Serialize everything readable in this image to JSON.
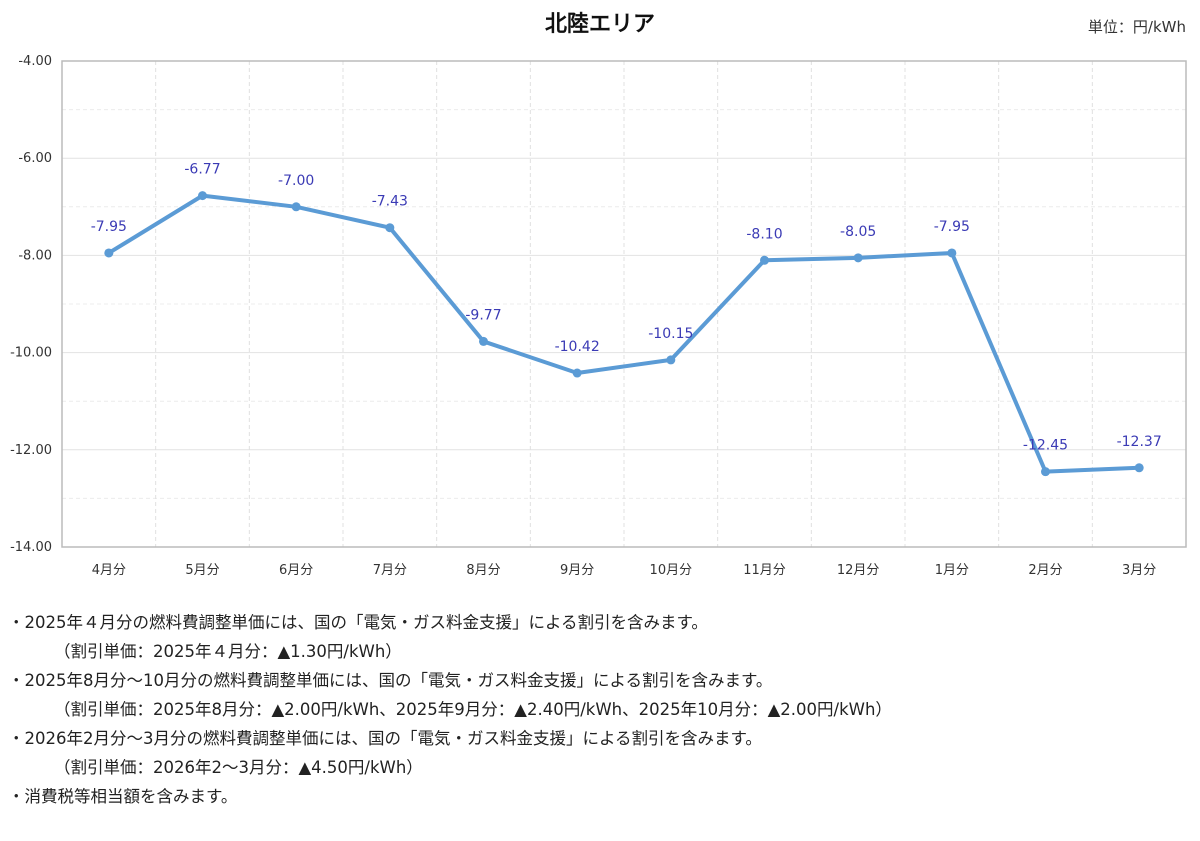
{
  "chart_data": {
    "type": "line",
    "title": "北陸エリア",
    "unit": "単位：円/kWh",
    "categories": [
      "4月分",
      "5月分",
      "6月分",
      "7月分",
      "8月分",
      "9月分",
      "10月分",
      "11月分",
      "12月分",
      "1月分",
      "2月分",
      "3月分"
    ],
    "series": [
      {
        "values": [
          -7.95,
          -6.77,
          -7.0,
          -7.43,
          -9.77,
          -10.42,
          -10.15,
          -8.1,
          -8.05,
          -7.95,
          -12.45,
          -12.37
        ],
        "labels": [
          "-7.95",
          "-6.77",
          "-7.00",
          "-7.43",
          "-9.77",
          "-10.42",
          "-10.15",
          "-8.10",
          "-8.05",
          "-7.95",
          "-12.45",
          "-12.37"
        ],
        "color": "#5b9bd5"
      }
    ],
    "ylim": [
      -14,
      -4
    ],
    "yticks": [
      -4,
      -6,
      -8,
      -10,
      -12,
      -14
    ],
    "ytick_labels": [
      "-4.00",
      "-6.00",
      "-8.00",
      "-10.00",
      "-12.00",
      "-14.00"
    ],
    "grid": true,
    "label_color": "#3b3bb5"
  },
  "notes": [
    "・2025年４月分の燃料費調整単価には、国の「電気・ガス料金支援」による割引を含みます。",
    "（割引単価：2025年４月分：▲1.30円/kWh）",
    "・2025年8月分～10月分の燃料費調整単価には、国の「電気・ガス料金支援」による割引を含みます。",
    "（割引単価：2025年8月分：▲2.00円/kWh、2025年9月分：▲2.40円/kWh、2025年10月分：▲2.00円/kWh）",
    "・2026年2月分～3月分の燃料費調整単価には、国の「電気・ガス料金支援」による割引を含みます。",
    "（割引単価：2026年2～3月分：▲4.50円/kWh）",
    "・消費税等相当額を含みます。"
  ]
}
